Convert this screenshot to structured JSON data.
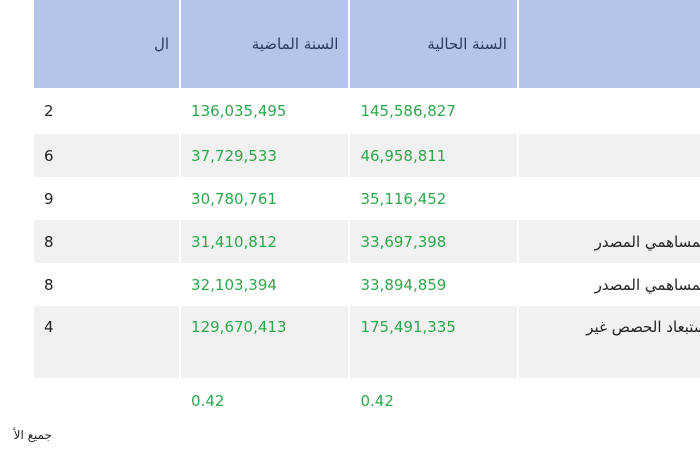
{
  "table": {
    "headers": {
      "label": "",
      "current_year": "السنة الحالية",
      "previous_year": "السنة الماضية",
      "third": "ال"
    },
    "rows": [
      {
        "label": "",
        "current": "145,586,827",
        "previous": "136,035,495",
        "third": "2"
      },
      {
        "label": "",
        "current": "46,958,811",
        "previous": "37,729,533",
        "third": "6"
      },
      {
        "label": "",
        "current": "35,116,452",
        "previous": "30,780,761",
        "third": "9"
      },
      {
        "label": "ئد لمساهمي المصدر",
        "current": "33,697,398",
        "previous": "31,410,812",
        "third": "8"
      },
      {
        "label": "ئد لمساهمي المصدر",
        "current": "33,894,859",
        "previous": "32,103,394",
        "third": "8"
      },
      {
        "label": "د استبعاد الحصص غير",
        "current": "175,491,335",
        "previous": "129,670,413",
        "third": "4"
      },
      {
        "label": "",
        "current": "",
        "previous": "",
        "third": ""
      },
      {
        "label": "",
        "current": "0.42",
        "previous": "0.42",
        "third": ""
      }
    ]
  },
  "footnote": "جميع الأ"
}
